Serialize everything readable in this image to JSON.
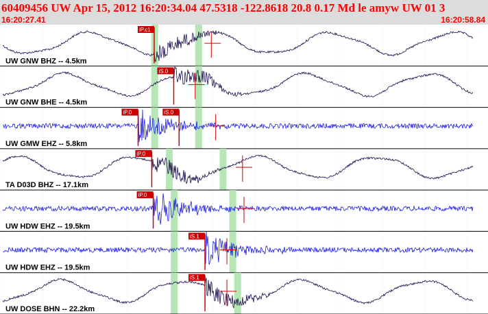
{
  "header": {
    "title": "60409456 UW Apr 15, 2012 16:20:34.04   47.5318 -122.8618 20.8 0.17 Md le amyw UW 01   3",
    "start_time": "16:20:27.41",
    "end_time": "16:20:58.84"
  },
  "colors": {
    "header_bg": "#dcdcdc",
    "header_text": "#ff0000",
    "trace_bb": "#1a0a4a",
    "trace_sp": "#0000e6",
    "pick": "#cc0000",
    "green_band": "#b6e6b6",
    "tick_line": "#c8c8c8"
  },
  "channels": [
    {
      "label": "UW GNW BHZ -- 4.5km",
      "type": "bb",
      "picks": [
        {
          "text": "iP.c1"
        }
      ],
      "green": [
        0.31,
        0.4
      ]
    },
    {
      "label": "UW GNW BHE -- 4.5km",
      "type": "bb",
      "picks": [
        {
          "text": "iS.0"
        }
      ],
      "green": [
        0.31,
        0.4
      ]
    },
    {
      "label": "UW GMW EHZ -- 5.8km",
      "type": "sp",
      "picks": [
        {
          "text": "iP.0"
        },
        {
          "text": "iS.0"
        }
      ],
      "green": [
        0.31,
        0.4
      ]
    },
    {
      "label": "TA D03D BHZ -- 17.1km",
      "type": "bb",
      "picks": [
        {
          "text": "iP.0"
        }
      ],
      "green": [
        0.34,
        0.45
      ]
    },
    {
      "label": "UW HDW EHZ -- 19.5km",
      "type": "sp",
      "picks": [
        {
          "text": "iP.0"
        }
      ],
      "green": [
        0.35,
        0.47
      ]
    },
    {
      "label": "UW HDW EHZ -- 19.5km",
      "type": "sp",
      "picks": [
        {
          "text": "iS.1"
        }
      ],
      "green": [
        0.35,
        0.47
      ]
    },
    {
      "label": "UW DOSE BHN -- 22.2km",
      "type": "bb",
      "picks": [
        {
          "text": "iS.1"
        }
      ],
      "green": [
        0.35,
        0.48
      ]
    }
  ]
}
